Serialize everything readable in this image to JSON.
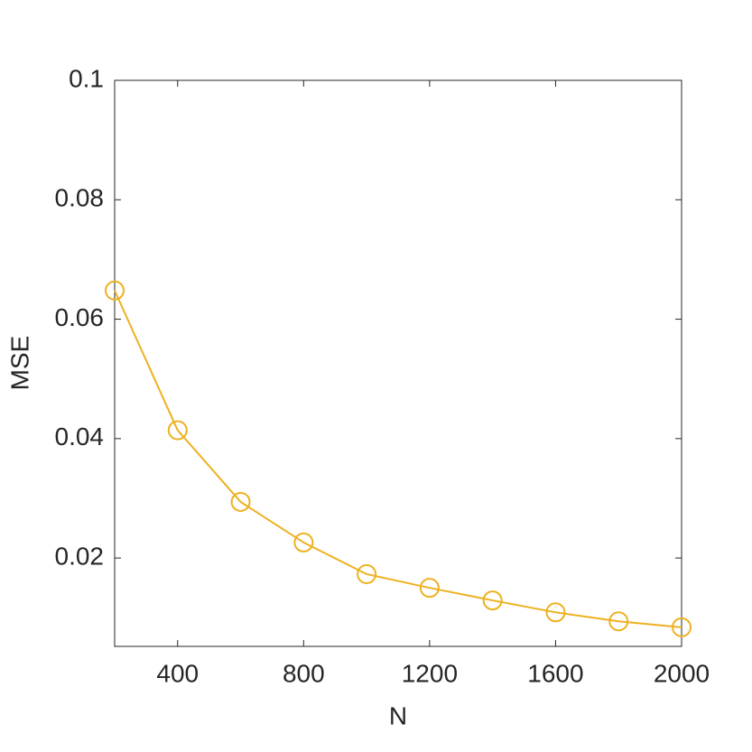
{
  "chart_data": {
    "type": "line",
    "x_label": "N",
    "y_label": "MSE",
    "x": [
      200,
      400,
      600,
      800,
      1000,
      1200,
      1400,
      1600,
      1800,
      2000
    ],
    "series": [
      {
        "name": "MSE",
        "color": "#EDB120",
        "values": [
          0.0648,
          0.0414,
          0.0294,
          0.0226,
          0.0173,
          0.015,
          0.0129,
          0.0109,
          0.0094,
          0.0084
        ]
      }
    ],
    "xlim": [
      200,
      2000
    ],
    "xticks": [
      400,
      800,
      1200,
      1600,
      2000
    ],
    "ylim": [
      0.0052,
      0.1
    ],
    "yticks": [
      0.02,
      0.04,
      0.06,
      0.08,
      0.1
    ],
    "marker": "circle",
    "grid": false
  }
}
